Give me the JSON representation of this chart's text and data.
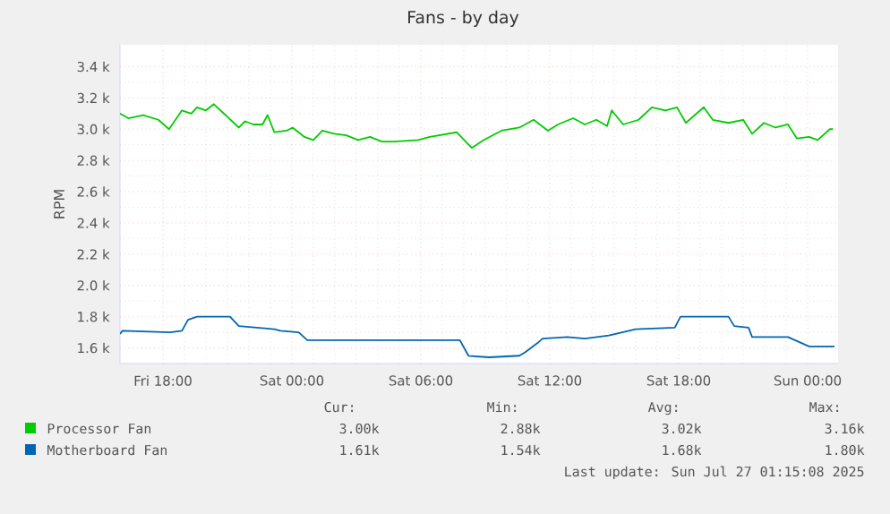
{
  "chart_data": {
    "type": "line",
    "title": "Fans - by day",
    "ylabel": "RPM",
    "xlim": [
      "2025-07-25T16:00",
      "2025-07-27T01:25"
    ],
    "ylim": [
      1500,
      3540
    ],
    "xticks": [
      {
        "value": "2025-07-25T18:00",
        "label": "Fri 18:00"
      },
      {
        "value": "2025-07-26T00:00",
        "label": "Sat 00:00"
      },
      {
        "value": "2025-07-26T06:00",
        "label": "Sat 06:00"
      },
      {
        "value": "2025-07-26T12:00",
        "label": "Sat 12:00"
      },
      {
        "value": "2025-07-26T18:00",
        "label": "Sat 18:00"
      },
      {
        "value": "2025-07-27T00:00",
        "label": "Sun 00:00"
      }
    ],
    "yticks": [
      {
        "value": 1600,
        "label": "1.6 k"
      },
      {
        "value": 1800,
        "label": "1.8 k"
      },
      {
        "value": 2000,
        "label": "2.0 k"
      },
      {
        "value": 2200,
        "label": "2.2 k"
      },
      {
        "value": 2400,
        "label": "2.4 k"
      },
      {
        "value": 2600,
        "label": "2.6 k"
      },
      {
        "value": 2800,
        "label": "2.8 k"
      },
      {
        "value": 3000,
        "label": "3.0 k"
      },
      {
        "value": 3200,
        "label": "3.2 k"
      },
      {
        "value": 3400,
        "label": "3.4 k"
      }
    ],
    "grid": true,
    "legend": "bottom",
    "series": [
      {
        "name": "Processor Fan",
        "color": "#00cc00",
        "x": [
          "2025-07-25T16:00",
          "2025-07-25T16:23",
          "2025-07-25T17:05",
          "2025-07-25T17:47",
          "2025-07-25T18:17",
          "2025-07-25T18:53",
          "2025-07-25T19:19",
          "2025-07-25T19:35",
          "2025-07-25T20:00",
          "2025-07-25T20:22",
          "2025-07-25T20:50",
          "2025-07-25T21:32",
          "2025-07-25T21:49",
          "2025-07-25T22:13",
          "2025-07-25T22:38",
          "2025-07-25T22:52",
          "2025-07-25T23:11",
          "2025-07-25T23:45",
          "2025-07-26T00:02",
          "2025-07-26T00:35",
          "2025-07-26T01:00",
          "2025-07-26T01:25",
          "2025-07-26T01:58",
          "2025-07-26T02:32",
          "2025-07-26T03:05",
          "2025-07-26T03:38",
          "2025-07-26T04:11",
          "2025-07-26T04:45",
          "2025-07-26T05:52",
          "2025-07-26T06:25",
          "2025-07-26T07:40",
          "2025-07-26T08:22",
          "2025-07-26T08:55",
          "2025-07-26T09:45",
          "2025-07-26T10:35",
          "2025-07-26T11:15",
          "2025-07-26T11:55",
          "2025-07-26T12:23",
          "2025-07-26T13:05",
          "2025-07-26T13:38",
          "2025-07-26T14:10",
          "2025-07-26T14:40",
          "2025-07-26T14:53",
          "2025-07-26T15:25",
          "2025-07-26T16:08",
          "2025-07-26T16:45",
          "2025-07-26T17:23",
          "2025-07-26T17:55",
          "2025-07-26T18:20",
          "2025-07-26T19:10",
          "2025-07-26T19:35",
          "2025-07-26T20:19",
          "2025-07-26T21:00",
          "2025-07-26T21:25",
          "2025-07-26T21:58",
          "2025-07-26T22:30",
          "2025-07-26T23:05",
          "2025-07-26T23:30",
          "2025-07-27T00:04",
          "2025-07-27T00:28",
          "2025-07-27T01:02",
          "2025-07-27T01:11"
        ],
        "values": [
          3100,
          3070,
          3090,
          3060,
          3000,
          3120,
          3100,
          3140,
          3120,
          3160,
          3100,
          3010,
          3050,
          3030,
          3030,
          3090,
          2980,
          2990,
          3010,
          2950,
          2930,
          2990,
          2970,
          2960,
          2930,
          2950,
          2920,
          2920,
          2930,
          2950,
          2980,
          2880,
          2930,
          2990,
          3010,
          3060,
          2990,
          3030,
          3070,
          3030,
          3060,
          3020,
          3120,
          3030,
          3060,
          3140,
          3120,
          3140,
          3040,
          3140,
          3060,
          3040,
          3060,
          2970,
          3040,
          3010,
          3030,
          2940,
          2950,
          2930,
          3000,
          3000
        ]
      },
      {
        "name": "Motherboard Fan",
        "color": "#0066b3",
        "x": [
          "2025-07-25T16:00",
          "2025-07-25T16:07",
          "2025-07-25T18:20",
          "2025-07-25T18:53",
          "2025-07-25T19:10",
          "2025-07-25T19:35",
          "2025-07-25T21:07",
          "2025-07-25T21:32",
          "2025-07-25T22:22",
          "2025-07-25T23:11",
          "2025-07-25T23:28",
          "2025-07-26T00:19",
          "2025-07-26T00:43",
          "2025-07-26T07:49",
          "2025-07-26T08:13",
          "2025-07-26T09:10",
          "2025-07-26T10:35",
          "2025-07-26T10:50",
          "2025-07-26T11:25",
          "2025-07-26T11:40",
          "2025-07-26T12:49",
          "2025-07-26T13:38",
          "2025-07-26T14:45",
          "2025-07-26T16:00",
          "2025-07-26T17:49",
          "2025-07-26T18:05",
          "2025-07-26T20:19",
          "2025-07-26T20:35",
          "2025-07-26T21:15",
          "2025-07-26T21:25",
          "2025-07-26T23:05",
          "2025-07-27T00:04",
          "2025-07-27T01:15"
        ],
        "values": [
          1690,
          1710,
          1700,
          1710,
          1780,
          1800,
          1800,
          1740,
          1730,
          1720,
          1710,
          1700,
          1650,
          1650,
          1550,
          1540,
          1550,
          1570,
          1630,
          1660,
          1670,
          1660,
          1680,
          1720,
          1730,
          1800,
          1800,
          1740,
          1730,
          1670,
          1670,
          1610,
          1610
        ]
      }
    ],
    "annotations": [
      "Cur:",
      "Min:",
      "Avg:",
      "Max:",
      "3.00k",
      "2.88k",
      "3.02k",
      "3.16k",
      "1.61k",
      "1.54k",
      "1.68k",
      "1.80k",
      "Last update: Sun Jul 27 01:15:08 2025"
    ]
  }
}
